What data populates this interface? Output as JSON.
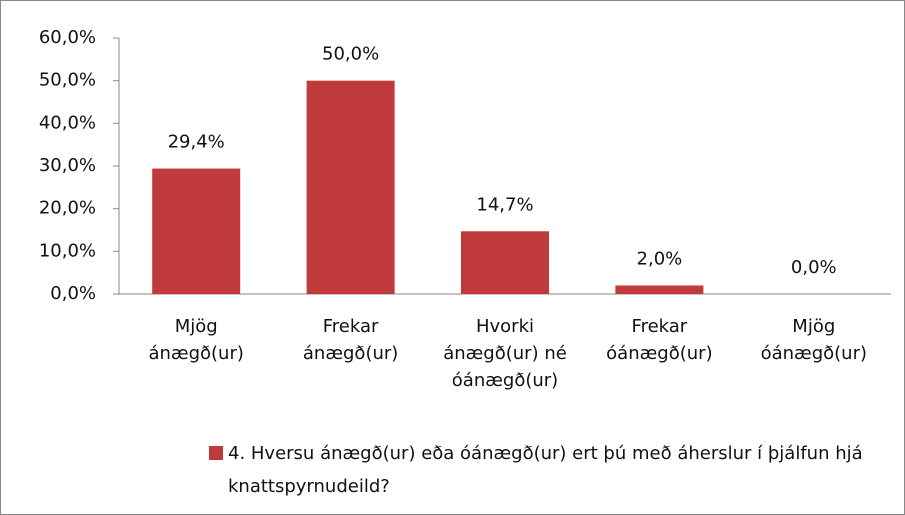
{
  "chart_data": {
    "type": "bar",
    "categories": [
      "Mjög ánægð(ur)",
      "Frekar ánægð(ur)",
      "Hvorki ánægð(ur) né óánægð(ur)",
      "Frekar óánægð(ur)",
      "Mjög óánægð(ur)"
    ],
    "series": [
      {
        "name": "4. Hversu ánægð(ur) eða óánægð(ur) ert þú með áherslur í þjálfun hjá knattspyrnudeild?",
        "color": "#c0393b",
        "values": [
          29.4,
          50,
          14.7,
          2,
          0
        ],
        "value_labels": [
          "29,4%",
          "50,0%",
          "14,7%",
          "2,0%",
          "0,0%"
        ]
      }
    ],
    "ylim": [
      0,
      60
    ],
    "yticks": [
      {
        "value": 0,
        "label": "0,0%"
      },
      {
        "value": 10,
        "label": "10,0%"
      },
      {
        "value": 20,
        "label": "20,0%"
      },
      {
        "value": 30,
        "label": "30,0%"
      },
      {
        "value": 40,
        "label": "40,0%"
      },
      {
        "value": 50,
        "label": "50,0%"
      },
      {
        "value": 60,
        "label": "60,0%"
      }
    ],
    "legend": "bottom"
  }
}
